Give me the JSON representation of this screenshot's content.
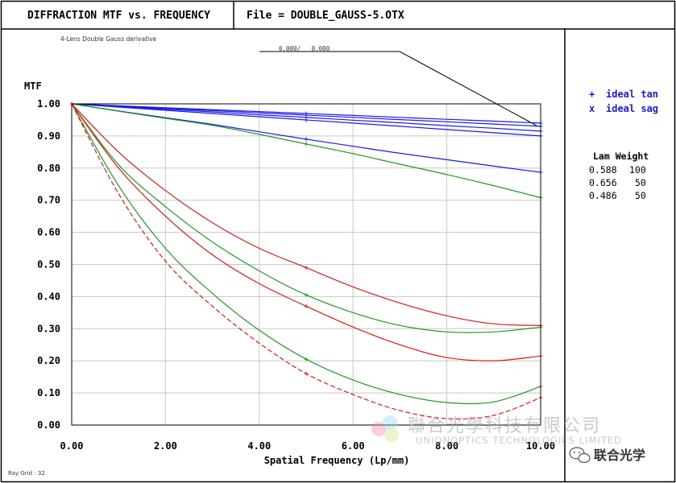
{
  "header": {
    "title": "DIFFRACTION MTF vs. FREQUENCY",
    "file_label": "File = DOUBLE_GAUSS-5.OTX"
  },
  "plot": {
    "subtitle": "4-Lens Double Gauss derivative",
    "field_label": "0.000/   0.000",
    "ray_grid": "Ray Grid : 32"
  },
  "legend": {
    "items": [
      {
        "marker": "+",
        "label": "ideal tan"
      },
      {
        "marker": "x",
        "label": "ideal sag"
      }
    ],
    "wavelength_header": "Lam Weight",
    "wavelengths": [
      {
        "lam": "0.588",
        "weight": "100"
      },
      {
        "lam": "0.656",
        "weight": " 50"
      },
      {
        "lam": "0.486",
        "weight": " 50"
      }
    ]
  },
  "watermark": {
    "company_cn": "聯合光學科技有限公司",
    "company_en": "UNIONOPTICS TECHNOLOGIES LIMITED",
    "wechat": "联合光学"
  },
  "colors": {
    "blue": "#1a1ae6",
    "green": "#1f9a1f",
    "red": "#e01a1a",
    "grid": "#c8c8c8"
  },
  "chart_data": {
    "type": "line",
    "ylabel": "MTF",
    "xlabel": "Spatial Frequency (Lp/mm)",
    "xlim": [
      0,
      10
    ],
    "ylim": [
      0,
      1
    ],
    "x_ticks": [
      "0.00",
      "2.00",
      "4.00",
      "6.00",
      "8.00",
      "10.00"
    ],
    "x_tick_values": [
      0,
      2,
      4,
      6,
      8,
      10
    ],
    "y_ticks": [
      "0.00",
      "0.10",
      "0.20",
      "0.30",
      "0.40",
      "0.50",
      "0.60",
      "0.70",
      "0.80",
      "0.90",
      "1.00"
    ],
    "y_tick_values": [
      0,
      0.1,
      0.2,
      0.3,
      0.4,
      0.5,
      0.6,
      0.7,
      0.8,
      0.9,
      1.0
    ],
    "grid": true,
    "x": [
      0,
      1,
      2,
      3,
      4,
      5,
      6,
      7,
      8,
      9,
      10
    ],
    "series": [
      {
        "color": "blue",
        "dash": false,
        "values": [
          1.0,
          0.994,
          0.988,
          0.982,
          0.976,
          0.97,
          0.964,
          0.958,
          0.952,
          0.946,
          0.94
        ]
      },
      {
        "color": "blue",
        "dash": false,
        "values": [
          1.0,
          0.993,
          0.986,
          0.979,
          0.972,
          0.965,
          0.958,
          0.951,
          0.944,
          0.937,
          0.93
        ]
      },
      {
        "color": "blue",
        "dash": false,
        "values": [
          1.0,
          0.992,
          0.983,
          0.975,
          0.966,
          0.958,
          0.949,
          0.941,
          0.932,
          0.924,
          0.915
        ]
      },
      {
        "color": "blue",
        "dash": false,
        "values": [
          1.0,
          0.99,
          0.98,
          0.97,
          0.96,
          0.95,
          0.94,
          0.93,
          0.92,
          0.91,
          0.9
        ]
      },
      {
        "color": "blue",
        "dash": false,
        "values": [
          1.0,
          0.978,
          0.957,
          0.936,
          0.913,
          0.89,
          0.868,
          0.846,
          0.826,
          0.806,
          0.787
        ]
      },
      {
        "color": "green",
        "dash": false,
        "values": [
          1.0,
          0.977,
          0.955,
          0.933,
          0.905,
          0.875,
          0.845,
          0.812,
          0.78,
          0.745,
          0.708
        ]
      },
      {
        "color": "red",
        "dash": false,
        "values": [
          1.0,
          0.85,
          0.73,
          0.63,
          0.55,
          0.49,
          0.43,
          0.38,
          0.34,
          0.315,
          0.31
        ]
      },
      {
        "color": "green",
        "dash": false,
        "values": [
          1.0,
          0.81,
          0.68,
          0.57,
          0.48,
          0.405,
          0.35,
          0.31,
          0.29,
          0.29,
          0.305
        ]
      },
      {
        "color": "red",
        "dash": false,
        "values": [
          1.0,
          0.8,
          0.65,
          0.53,
          0.44,
          0.37,
          0.305,
          0.25,
          0.21,
          0.2,
          0.215
        ]
      },
      {
        "color": "green",
        "dash": false,
        "values": [
          1.0,
          0.745,
          0.55,
          0.41,
          0.295,
          0.205,
          0.14,
          0.095,
          0.07,
          0.072,
          0.12
        ]
      },
      {
        "color": "red",
        "dash": true,
        "values": [
          1.0,
          0.72,
          0.51,
          0.37,
          0.255,
          0.16,
          0.095,
          0.045,
          0.02,
          0.03,
          0.085
        ]
      }
    ]
  }
}
